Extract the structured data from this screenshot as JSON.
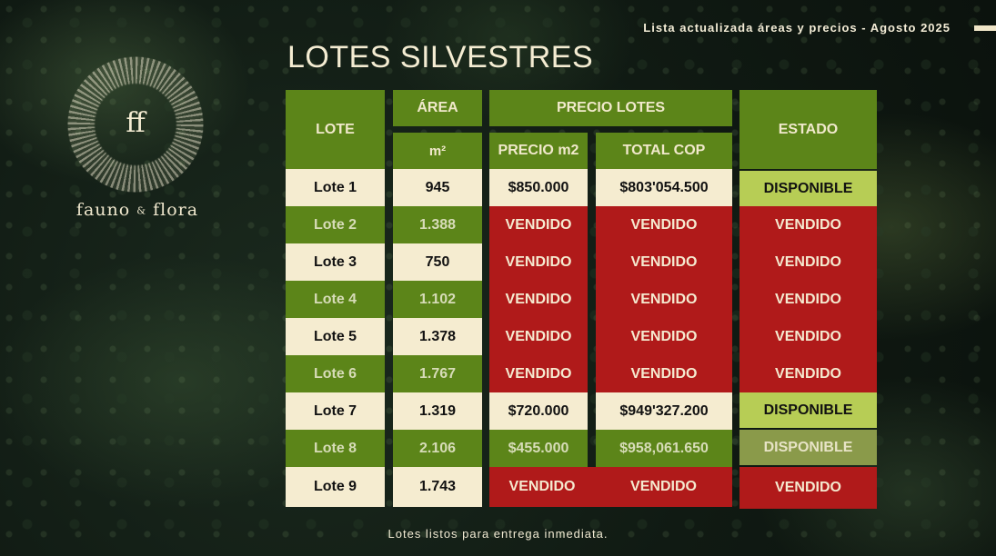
{
  "header_note": "Lista actualizada áreas y precios - Agosto 2025",
  "title": "LOTES SILVESTRES",
  "logo": {
    "mark": "ff",
    "name_left": "fauno",
    "name_amp": "&",
    "name_right": "flora"
  },
  "table": {
    "headers": {
      "lote": "LOTE",
      "area": "ÁREA",
      "area_unit": "m²",
      "precio_lotes": "PRECIO LOTES",
      "precio_m2": "PRECIO m2",
      "total_cop": "TOTAL COP",
      "estado": "ESTADO"
    },
    "rows": [
      {
        "lote": "Lote 1",
        "area": "945",
        "precio_m2": "$850.000",
        "total": "$803'054.500",
        "estado": "DISPONIBLE"
      },
      {
        "lote": "Lote 2",
        "area": "1.388",
        "precio_m2": "VENDIDO",
        "total": "VENDIDO",
        "estado": "VENDIDO"
      },
      {
        "lote": "Lote 3",
        "area": "750",
        "precio_m2": "VENDIDO",
        "total": "VENDIDO",
        "estado": "VENDIDO"
      },
      {
        "lote": "Lote 4",
        "area": "1.102",
        "precio_m2": "VENDIDO",
        "total": "VENDIDO",
        "estado": "VENDIDO"
      },
      {
        "lote": "Lote 5",
        "area": "1.378",
        "precio_m2": "VENDIDO",
        "total": "VENDIDO",
        "estado": "VENDIDO"
      },
      {
        "lote": "Lote 6",
        "area": "1.767",
        "precio_m2": "VENDIDO",
        "total": "VENDIDO",
        "estado": "VENDIDO"
      },
      {
        "lote": "Lote 7",
        "area": "1.319",
        "precio_m2": "$720.000",
        "total": "$949'327.200",
        "estado": "DISPONIBLE"
      },
      {
        "lote": "Lote 8",
        "area": "2.106",
        "precio_m2": "$455.000",
        "total": "$958,061.650",
        "estado": "DISPONIBLE"
      },
      {
        "lote": "Lote 9",
        "area": "1.743",
        "precio_m2": "VENDIDO",
        "total": "VENDIDO",
        "estado": "VENDIDO"
      }
    ]
  },
  "footer": "Lotes listos para entrega inmediata.",
  "colors": {
    "green": "#5c8519",
    "cream": "#f5ecd0",
    "red": "#b01a1a",
    "lime": "#b7cd55",
    "olive": "#8a9a4a"
  }
}
